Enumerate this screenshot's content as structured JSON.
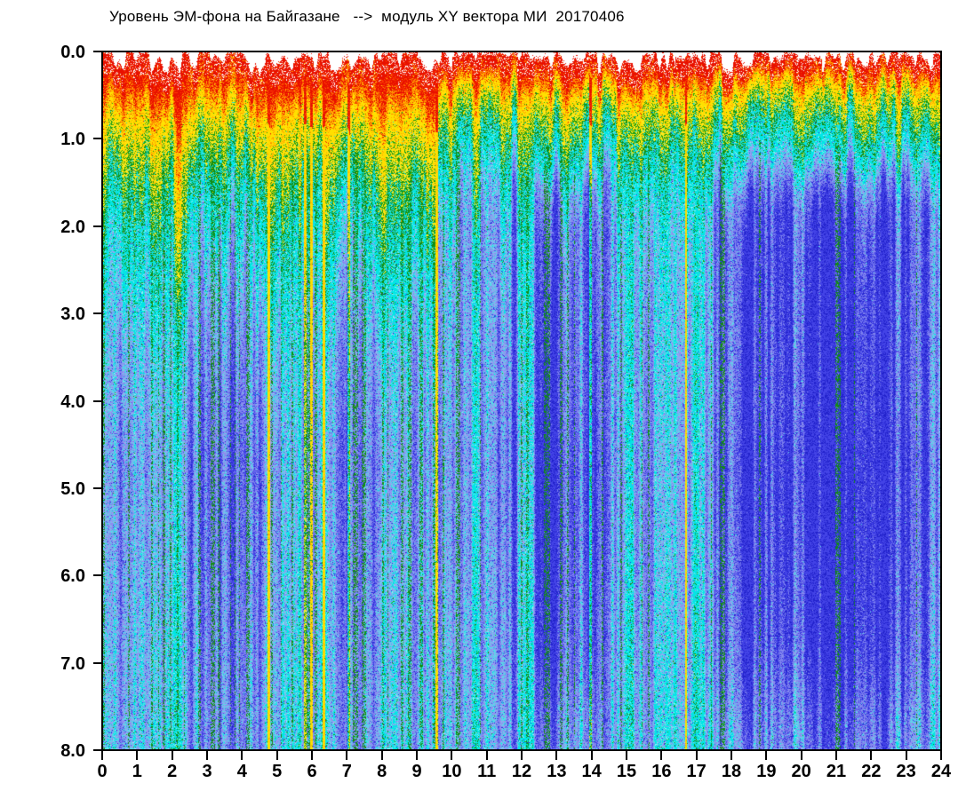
{
  "title": "Уровень ЭМ-фона на Байгазане   -->  модуль XY вектора МИ  20170406",
  "chart_data": {
    "type": "heatmap",
    "title": "Уровень ЭМ-фона на Байгазане --> модуль XY вектора МИ 20170406",
    "date_label": "20170406",
    "x_axis": {
      "range": [
        0,
        24
      ],
      "unit": "hours",
      "ticks": [
        "0",
        "1",
        "2",
        "3",
        "4",
        "5",
        "6",
        "7",
        "8",
        "9",
        "10",
        "11",
        "12",
        "13",
        "14",
        "15",
        "16",
        "17",
        "18",
        "19",
        "20",
        "21",
        "22",
        "23",
        "24"
      ]
    },
    "y_axis": {
      "range": [
        0,
        8
      ],
      "direction": "down",
      "ticks": [
        "0.0",
        "1.0",
        "2.0",
        "3.0",
        "4.0",
        "5.0",
        "6.0",
        "7.0",
        "8.0"
      ]
    },
    "colormap_high_to_low": [
      "#ffffff",
      "#e81000",
      "#ff8c00",
      "#ffdf00",
      "#17a017",
      "#00e6e6",
      "#97a0f0",
      "#8a8fee",
      "#4343e6",
      "#2222cc"
    ],
    "background_above_data": "#ffffff",
    "features": {
      "seed": 20170406,
      "surface_red_band_max_depth": 0.5,
      "hot_band_depth_hours_0_to_10": 2.6,
      "hot_band_depth_hours_10_to_17": 1.3,
      "hot_band_depth_hours_17_to_24": 1.1,
      "dark_blue_regions_hours": [
        [
          12.1,
          14.5
        ],
        [
          16.95,
          24
        ]
      ],
      "yellow_vertical_line_hour": 16.7,
      "deep_yellow_streak_hours": [
        4.75,
        5.78,
        5.97,
        6.33,
        7.02,
        9.55,
        13.95
      ],
      "cyan_floor_start_depth": 6.5
    }
  }
}
